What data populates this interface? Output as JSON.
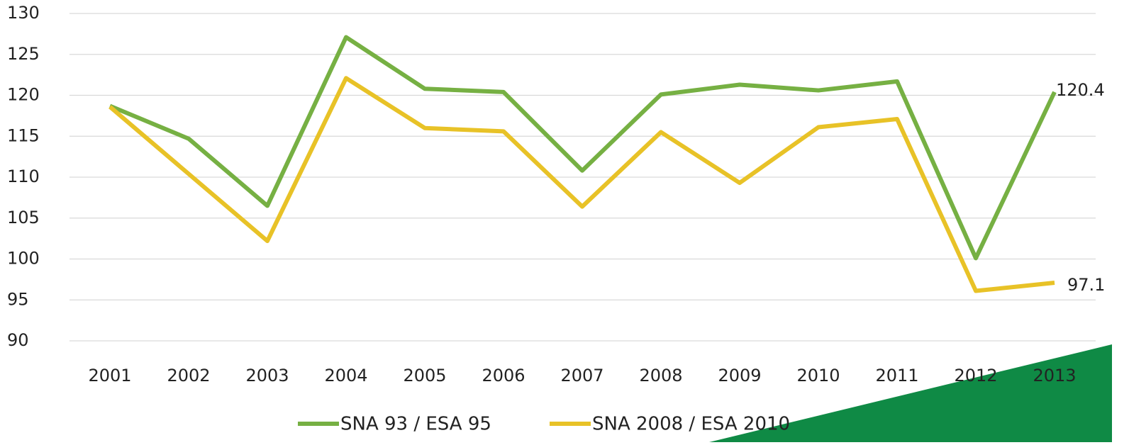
{
  "chart_data": {
    "type": "line",
    "categories": [
      "2001",
      "2002",
      "2003",
      "2004",
      "2005",
      "2006",
      "2007",
      "2008",
      "2009",
      "2010",
      "2011",
      "2012",
      "2013"
    ],
    "series": [
      {
        "name": "SNA 93 / ESA 95",
        "color": "#76b043",
        "values": [
          118.7,
          114.7,
          106.5,
          127.1,
          120.8,
          120.4,
          110.8,
          120.1,
          121.3,
          120.6,
          121.7,
          100.1,
          120.4
        ]
      },
      {
        "name": "SNA 2008 / ESA 2010",
        "color": "#e8c227",
        "values": [
          118.6,
          110.4,
          102.2,
          122.1,
          116.0,
          115.6,
          106.4,
          115.5,
          109.3,
          116.1,
          117.1,
          96.1,
          97.1
        ]
      }
    ],
    "ylim": [
      90,
      130
    ],
    "yticks": [
      90,
      95,
      100,
      105,
      110,
      115,
      120,
      125,
      130
    ],
    "grid": true,
    "legend": "bottom"
  }
}
